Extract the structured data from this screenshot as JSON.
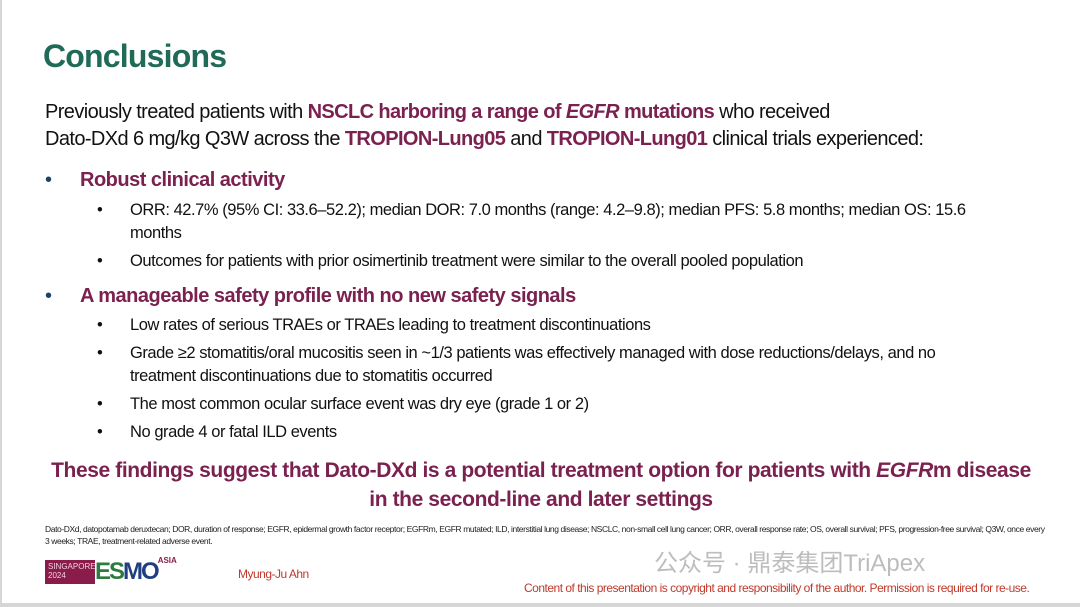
{
  "title": "Conclusions",
  "intro": {
    "l1a": "Previously treated patients with ",
    "l1b": "NSCLC harboring a range of ",
    "l1c": "EGFR",
    "l1d": " mutations",
    "l1e": " who received",
    "l2a": "Dato-DXd 6 mg/kg Q3W across the ",
    "l2b": "TROPION-Lung05",
    "l2c": " and ",
    "l2d": "TROPION-Lung01",
    "l2e": " clinical trials experienced:"
  },
  "bullets": [
    {
      "label": "Robust clinical activity",
      "subs": [
        "ORR: 42.7% (95% CI: 33.6–52.2); median DOR: 7.0 months (range: 4.2–9.8); median PFS: 5.8 months; median OS: 15.6 months",
        "Outcomes for patients with prior osimertinib treatment were similar to the overall pooled population"
      ]
    },
    {
      "label": "A manageable safety profile with no new safety signals",
      "subs": [
        "Low rates of serious TRAEs or TRAEs leading to treatment discontinuations",
        "Grade ≥2 stomatitis/oral mucositis seen in ~1/3 patients was effectively managed with dose reductions/delays, and no treatment discontinuations due to stomatitis occurred",
        "The most common ocular surface event was dry eye (grade 1 or 2)",
        "No grade 4 or fatal ILD events"
      ]
    }
  ],
  "bullet_symbol": "•",
  "conclusion": {
    "a": "These findings suggest that Dato-DXd is a potential treatment option for patients with ",
    "b": "EGFR",
    "c": "m disease in the second-line and later settings"
  },
  "footnote": "Dato-DXd, datopotamab deruxtecan; DOR, duration of response; EGFR, epidermal growth factor receptor; EGFRm, EGFR mutated; ILD, interstitial lung disease; NSCLC, non-small cell lung cancer; ORR, overall response rate; OS, overall survival; PFS, progression-free survival; Q3W, once every 3 weeks; TRAE, treatment-related adverse event.",
  "footer": {
    "logo_city": "SINGAPORE",
    "logo_year": "2024",
    "logo_esmo": "ESMO",
    "logo_asia": "ASIA",
    "author": "Myung-Ju Ahn",
    "copyright": "Content of this presentation is copyright and responsibility of the author. Permission is required for re-use."
  },
  "watermark": "公众号 · 鼎泰集团TriApex",
  "colors": {
    "title": "#1f6b58",
    "accent": "#7b2150",
    "footer_text": "#c0392b"
  }
}
